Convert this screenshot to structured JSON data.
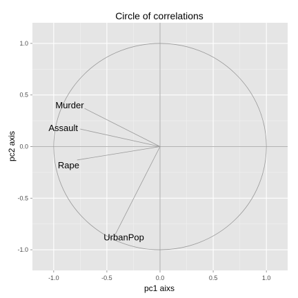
{
  "chart_data": {
    "type": "scatter",
    "title": "Circle of correlations",
    "xlabel": "pc1 aixs",
    "ylabel": "pc2 axis",
    "xlim": [
      -1.2,
      1.2
    ],
    "ylim": [
      -1.2,
      1.2
    ],
    "xticks": [
      -1.0,
      -0.5,
      0.0,
      0.5,
      1.0
    ],
    "xtick_labels": [
      "-1.0",
      "-0.5",
      "0.0",
      "0.5",
      "1.0"
    ],
    "yticks": [
      -1.0,
      -0.5,
      0.0,
      0.5,
      1.0
    ],
    "ytick_labels": [
      "-1.0",
      "-0.5",
      "0.0",
      "0.5",
      "1.0"
    ],
    "grid": true,
    "circle_radius": 1.0,
    "variables": [
      {
        "label": "Murder",
        "x": -0.71,
        "y": 0.37,
        "label_x": -0.85,
        "label_y": 0.4
      },
      {
        "label": "Assault",
        "x": -0.75,
        "y": 0.17,
        "label_x": -0.91,
        "label_y": 0.18
      },
      {
        "label": "Rape",
        "x": -0.78,
        "y": -0.13,
        "label_x": -0.86,
        "label_y": -0.18
      },
      {
        "label": "UrbanPop",
        "x": -0.43,
        "y": -0.87,
        "label_x": -0.34,
        "label_y": -0.88
      }
    ]
  },
  "colors": {
    "panel_background": "#e5e5e5",
    "grid_major": "#ffffff",
    "grid_minor": "#f0f0f0",
    "circle": "#999999",
    "zero_lines": "#999999",
    "arrows": "#999999",
    "tick_text": "#4d4d4d",
    "text": "#000000"
  }
}
